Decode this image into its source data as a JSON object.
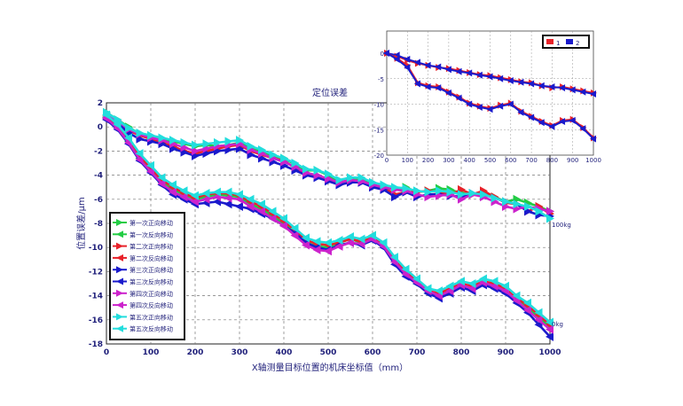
{
  "chart_data": [
    {
      "type": "line",
      "title": "定位误差",
      "xlabel": "X轴测量目标位置的机床坐标值（mm）",
      "ylabel": "位置误差/μm",
      "xlim": [
        0,
        1000
      ],
      "ylim": [
        -18,
        2
      ],
      "xticks": [
        "0",
        "100",
        "200",
        "300",
        "400",
        "500",
        "600",
        "700",
        "800",
        "900",
        "1000"
      ],
      "yticks": [
        "2",
        "0",
        "-2",
        "-4",
        "-6",
        "-8",
        "-10",
        "-12",
        "-14",
        "-16",
        "-18"
      ],
      "grid": true,
      "legend_position": "bottom-left",
      "annotations": [
        "100kg",
        "0kg"
      ],
      "x": [
        0,
        25,
        50,
        75,
        100,
        125,
        150,
        175,
        200,
        225,
        250,
        275,
        300,
        325,
        350,
        375,
        400,
        425,
        450,
        475,
        500,
        525,
        550,
        575,
        600,
        625,
        650,
        675,
        700,
        725,
        750,
        775,
        800,
        825,
        850,
        875,
        900,
        925,
        950,
        975,
        1000
      ],
      "series": [
        {
          "name": "第一次正向移动",
          "color": "#22cc44",
          "group": "100kg",
          "values": [
            1.2,
            0.6,
            0.0,
            -0.6,
            -0.8,
            -1.0,
            -1.2,
            -1.4,
            -1.6,
            -1.5,
            -1.6,
            -1.5,
            -1.3,
            -1.8,
            -2.0,
            -2.4,
            -2.6,
            -3.1,
            -3.6,
            -3.6,
            -4.0,
            -4.6,
            -4.4,
            -4.3,
            -4.8,
            -5.0,
            -5.2,
            -5.0,
            -5.4,
            -5.3,
            -5.1,
            -5.2,
            -5.5,
            -5.6,
            -5.4,
            -5.8,
            -6.2,
            -6.0,
            -6.3,
            -6.6,
            -7.0
          ]
        },
        {
          "name": "第一次反向移动",
          "color": "#22cc44",
          "group": "0kg",
          "values": [
            0.8,
            0.0,
            -1.2,
            -2.6,
            -3.6,
            -4.6,
            -5.2,
            -5.6,
            -6.0,
            -5.8,
            -5.6,
            -5.7,
            -5.8,
            -6.4,
            -6.8,
            -7.4,
            -8.0,
            -8.8,
            -9.6,
            -9.9,
            -10.0,
            -9.6,
            -9.3,
            -9.6,
            -9.0,
            -9.8,
            -11.2,
            -12.2,
            -13.0,
            -13.8,
            -14.0,
            -13.6,
            -13.0,
            -13.4,
            -12.9,
            -13.2,
            -13.6,
            -14.4,
            -15.0,
            -15.8,
            -16.6
          ]
        },
        {
          "name": "第二次正向移动",
          "color": "#e8222a",
          "group": "100kg",
          "values": [
            1.0,
            0.4,
            -0.3,
            -0.7,
            -1.0,
            -1.3,
            -1.6,
            -2.0,
            -2.2,
            -2.0,
            -1.8,
            -1.6,
            -1.5,
            -2.0,
            -2.3,
            -2.6,
            -2.8,
            -3.4,
            -3.9,
            -4.1,
            -4.4,
            -4.6,
            -4.4,
            -4.6,
            -4.8,
            -5.0,
            -5.6,
            -5.4,
            -5.4,
            -5.3,
            -5.4,
            -5.6,
            -5.2,
            -5.6,
            -5.3,
            -5.8,
            -6.3,
            -6.4,
            -7.0,
            -6.6,
            -7.2
          ]
        },
        {
          "name": "第二次反向移动",
          "color": "#e8222a",
          "group": "0kg",
          "values": [
            0.9,
            0.1,
            -1.0,
            -2.4,
            -3.4,
            -4.4,
            -5.0,
            -5.5,
            -5.9,
            -5.6,
            -5.5,
            -5.5,
            -5.7,
            -6.2,
            -6.6,
            -7.2,
            -7.8,
            -8.6,
            -9.4,
            -9.7,
            -9.8,
            -9.6,
            -9.3,
            -9.5,
            -9.2,
            -9.8,
            -11.0,
            -12.0,
            -12.8,
            -13.6,
            -13.8,
            -13.4,
            -13.0,
            -13.2,
            -12.8,
            -13.0,
            -13.4,
            -14.2,
            -14.8,
            -15.6,
            -16.4
          ]
        },
        {
          "name": "第三次正向移动",
          "color": "#1a1acc",
          "group": "100kg",
          "values": [
            1.0,
            0.3,
            -0.5,
            -1.0,
            -1.2,
            -1.4,
            -1.8,
            -2.1,
            -2.4,
            -2.2,
            -2.0,
            -1.9,
            -1.8,
            -2.3,
            -2.6,
            -2.9,
            -3.2,
            -3.6,
            -4.0,
            -4.2,
            -4.5,
            -4.8,
            -4.6,
            -4.6,
            -5.0,
            -5.2,
            -5.8,
            -5.4,
            -5.8,
            -5.6,
            -5.6,
            -5.7,
            -5.8,
            -5.5,
            -5.6,
            -5.9,
            -6.2,
            -6.4,
            -7.0,
            -7.3,
            -7.4
          ]
        },
        {
          "name": "第三次反向移动",
          "color": "#1a1acc",
          "group": "0kg",
          "values": [
            0.6,
            -0.2,
            -1.4,
            -2.8,
            -3.8,
            -4.8,
            -5.6,
            -6.0,
            -6.4,
            -6.3,
            -6.2,
            -6.4,
            -6.6,
            -6.8,
            -7.2,
            -7.6,
            -8.2,
            -8.8,
            -9.6,
            -10.0,
            -10.2,
            -9.8,
            -9.6,
            -9.8,
            -9.4,
            -10.0,
            -11.4,
            -12.4,
            -13.0,
            -13.8,
            -14.2,
            -13.8,
            -13.3,
            -13.6,
            -13.1,
            -13.4,
            -13.8,
            -14.6,
            -15.4,
            -16.4,
            -17.4
          ]
        },
        {
          "name": "第四次正向移动",
          "color": "#cc22cc",
          "group": "100kg",
          "values": [
            1.1,
            0.5,
            -0.2,
            -0.6,
            -0.9,
            -1.1,
            -1.4,
            -1.7,
            -2.0,
            -1.8,
            -1.6,
            -1.5,
            -1.4,
            -1.9,
            -2.2,
            -2.6,
            -2.9,
            -3.3,
            -3.8,
            -4.0,
            -4.3,
            -4.6,
            -4.4,
            -4.5,
            -4.8,
            -5.0,
            -5.2,
            -5.3,
            -5.6,
            -5.8,
            -5.7,
            -5.6,
            -6.0,
            -5.6,
            -5.8,
            -6.2,
            -6.6,
            -6.8,
            -6.6,
            -6.8,
            -7.0
          ]
        },
        {
          "name": "第四次反向移动",
          "color": "#cc22cc",
          "group": "0kg",
          "values": [
            0.7,
            -0.1,
            -1.3,
            -2.7,
            -3.7,
            -4.7,
            -5.4,
            -5.8,
            -6.2,
            -6.0,
            -5.8,
            -5.9,
            -6.0,
            -6.6,
            -7.0,
            -7.6,
            -8.2,
            -9.0,
            -9.8,
            -10.2,
            -10.3,
            -9.9,
            -9.6,
            -9.7,
            -9.3,
            -9.9,
            -11.2,
            -12.2,
            -12.9,
            -13.6,
            -14.0,
            -13.6,
            -13.1,
            -13.4,
            -12.9,
            -13.2,
            -13.6,
            -14.4,
            -15.2,
            -16.0,
            -16.8
          ]
        },
        {
          "name": "第五次正向移动",
          "color": "#22dddd",
          "group": "100kg",
          "values": [
            1.2,
            0.6,
            -0.1,
            -0.5,
            -0.7,
            -0.9,
            -1.1,
            -1.3,
            -1.5,
            -1.4,
            -1.3,
            -1.2,
            -1.1,
            -1.6,
            -1.9,
            -2.3,
            -2.6,
            -3.0,
            -3.5,
            -3.6,
            -3.9,
            -4.4,
            -4.2,
            -4.2,
            -4.6,
            -4.8,
            -5.0,
            -5.1,
            -5.3,
            -5.4,
            -5.3,
            -5.4,
            -5.6,
            -5.5,
            -5.6,
            -5.9,
            -6.2,
            -6.4,
            -6.6,
            -7.0,
            -7.6
          ]
        },
        {
          "name": "第五次反向移动",
          "color": "#22dddd",
          "group": "0kg",
          "values": [
            1.0,
            0.2,
            -0.9,
            -2.2,
            -3.2,
            -4.2,
            -4.8,
            -5.3,
            -5.7,
            -5.5,
            -5.4,
            -5.4,
            -5.6,
            -6.0,
            -6.4,
            -7.0,
            -7.6,
            -8.4,
            -9.2,
            -9.5,
            -9.6,
            -9.4,
            -9.1,
            -9.3,
            -9.0,
            -9.6,
            -10.8,
            -11.8,
            -12.6,
            -13.4,
            -13.6,
            -13.2,
            -12.8,
            -13.0,
            -12.6,
            -12.8,
            -13.2,
            -14.0,
            -14.6,
            -15.4,
            -16.2
          ]
        }
      ]
    },
    {
      "type": "line",
      "title": "",
      "legend": [
        "1",
        "2"
      ],
      "xticks": [
        "0",
        "100",
        "200",
        "300",
        "400",
        "500",
        "600",
        "700",
        "800",
        "900",
        "1000"
      ],
      "yticks": [
        "0",
        "-5",
        "-10",
        "-15",
        "-20"
      ],
      "xlim": [
        0,
        1000
      ],
      "ylim": [
        -20,
        0
      ],
      "x": [
        0,
        50,
        100,
        150,
        200,
        250,
        300,
        350,
        400,
        450,
        500,
        550,
        600,
        650,
        700,
        750,
        800,
        850,
        900,
        950,
        1000
      ],
      "series": [
        {
          "name": "1",
          "color": "#e8222a",
          "values": [
            0,
            -0.6,
            -1.4,
            -2.0,
            -2.4,
            -2.8,
            -3.0,
            -3.4,
            -3.8,
            -4.2,
            -4.4,
            -4.8,
            -5.2,
            -5.6,
            -5.8,
            -6.4,
            -6.8,
            -6.6,
            -7.0,
            -7.4,
            -7.8
          ]
        },
        {
          "name": "2",
          "color": "#1a1acc",
          "values": [
            0,
            -0.4,
            -1.2,
            -1.8,
            -2.4,
            -2.7,
            -3.2,
            -3.6,
            -3.9,
            -4.3,
            -4.6,
            -5.0,
            -5.4,
            -5.7,
            -6.0,
            -6.4,
            -6.6,
            -6.8,
            -7.2,
            -7.6,
            -8.0
          ]
        },
        {
          "name": "1b",
          "color": "#e8222a",
          "values": [
            0,
            -1.0,
            -2.4,
            -5.8,
            -6.4,
            -6.6,
            -7.6,
            -8.6,
            -9.8,
            -10.4,
            -10.8,
            -10.2,
            -9.8,
            -11.4,
            -12.4,
            -13.4,
            -14.2,
            -13.2,
            -13.0,
            -14.6,
            -16.6
          ]
        },
        {
          "name": "2b",
          "color": "#1a1acc",
          "values": [
            0,
            -1.2,
            -2.8,
            -6.0,
            -6.6,
            -6.8,
            -7.8,
            -8.8,
            -10.0,
            -10.6,
            -11.0,
            -10.4,
            -10.0,
            -11.6,
            -12.6,
            -13.6,
            -14.4,
            -13.4,
            -13.2,
            -14.8,
            -16.8
          ]
        }
      ]
    }
  ]
}
